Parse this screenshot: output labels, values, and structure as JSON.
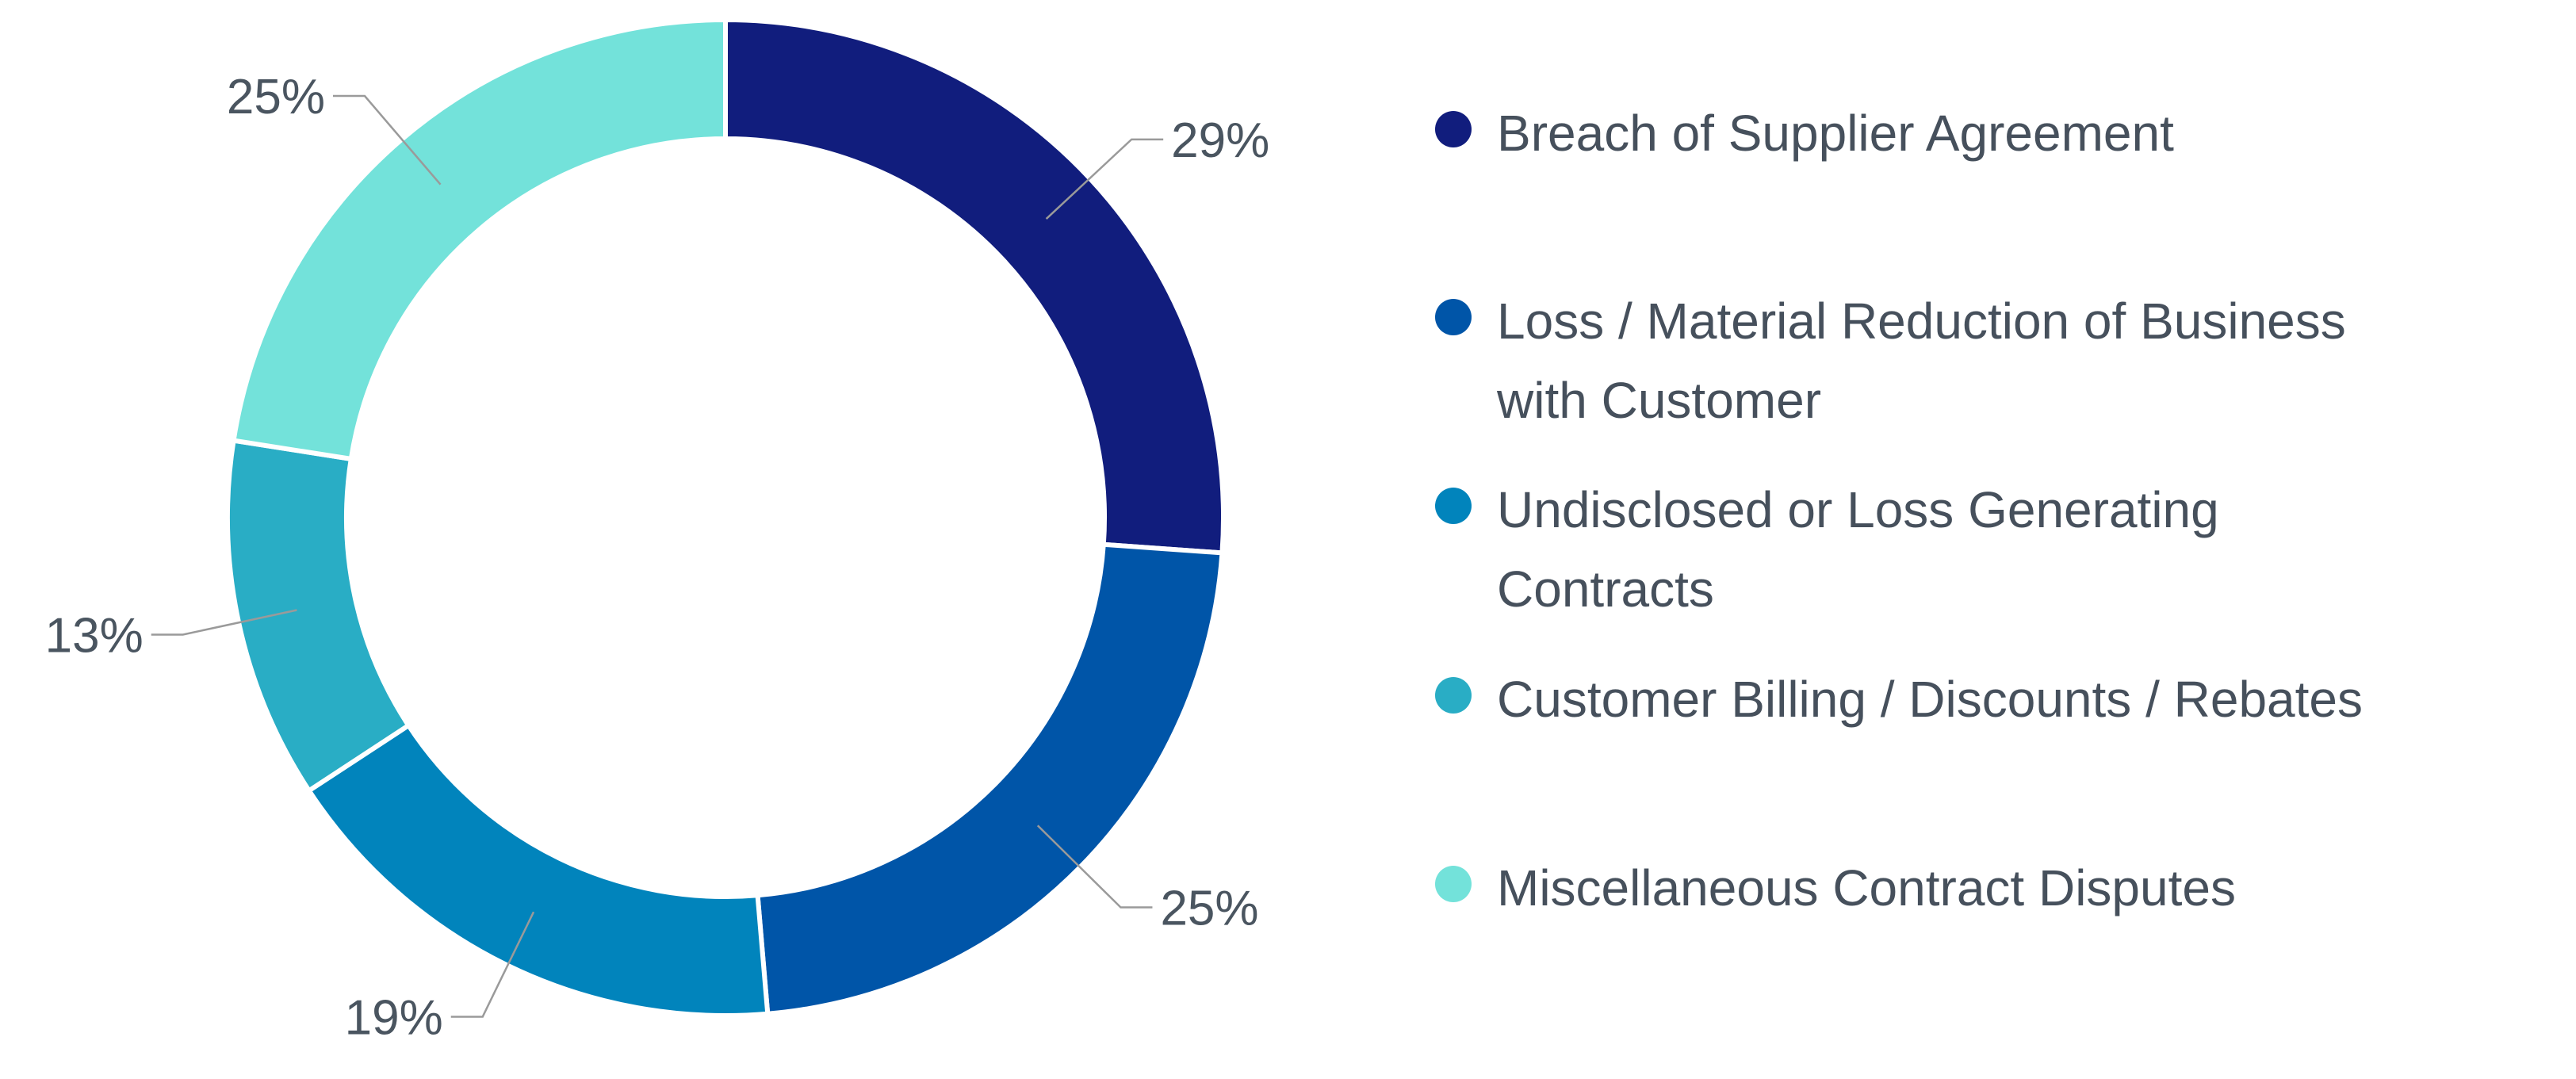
{
  "chart_data": {
    "type": "pie",
    "donut": true,
    "start_angle_deg": 0,
    "direction": "clockwise",
    "categories": [
      "Breach of Supplier Agreement",
      "Loss / Material Reduction of Business with Customer",
      "Undisclosed or Loss Generating Contracts",
      "Customer Billing / Discounts / Rebates",
      "Miscellaneous Contract Disputes"
    ],
    "values": [
      29,
      25,
      19,
      13,
      25
    ],
    "value_labels": [
      "29%",
      "25%",
      "19%",
      "13%",
      "25%"
    ],
    "colors": [
      "#111d7d",
      "#0055a8",
      "#0184bc",
      "#29adc5",
      "#73e2da"
    ],
    "title": "",
    "legend_position": "right"
  },
  "legend": [
    {
      "label": "Breach of Supplier Agreement",
      "color": "#111d7d"
    },
    {
      "label": "Loss / Material Reduction of Business with Customer",
      "color": "#0055a8"
    },
    {
      "label": "Undisclosed or Loss Generating Contracts",
      "color": "#0184bc"
    },
    {
      "label": "Customer Billing / Discounts / Rebates",
      "color": "#29adc5"
    },
    {
      "label": "Miscellaneous Contract Disputes",
      "color": "#73e2da"
    }
  ]
}
